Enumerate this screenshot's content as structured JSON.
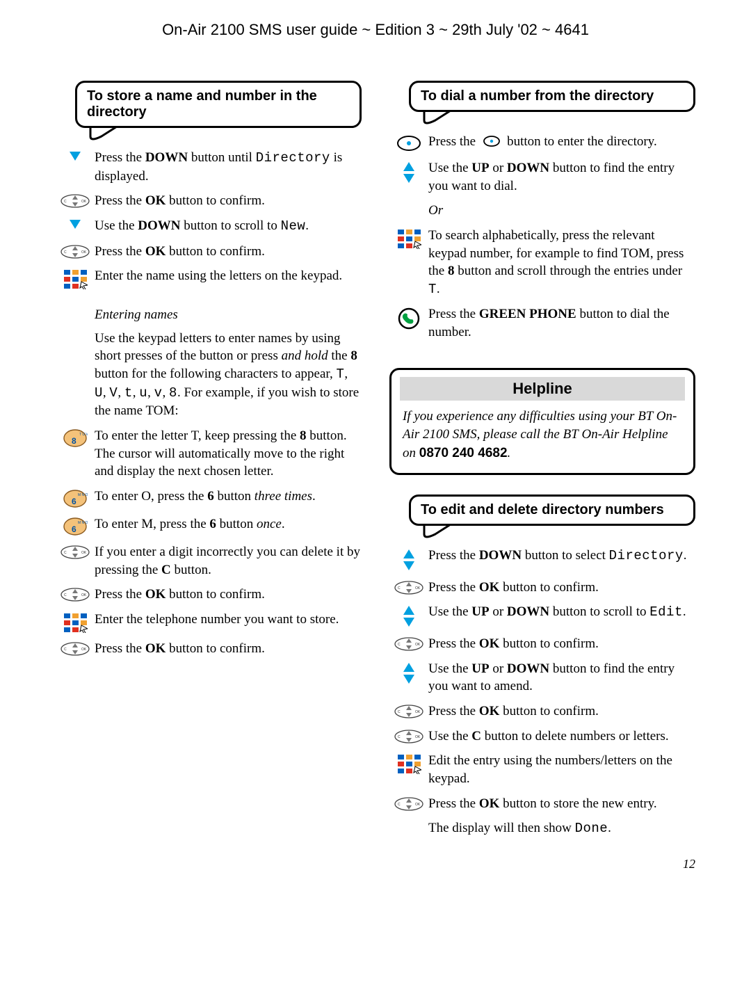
{
  "header": "On-Air 2100 SMS user guide ~ Edition 3 ~ 29th July '02 ~ 4641",
  "pageNumber": "12",
  "colors": {
    "accentBlue": "#00a0e0",
    "keyFill": "#f4c27a",
    "keyStroke": "#8a5a20",
    "keyText": "#0050a0",
    "keypadRed": "#e03020",
    "keypadBlue": "#0060c0",
    "keypadOrange": "#f0a030",
    "phoneGreen": "#00a040",
    "helpBarBg": "#d9d9d9"
  },
  "left": {
    "title": "To store a name and number in the directory",
    "steps": [
      {
        "icon": "down",
        "html": "Press the <span class='bold'>DOWN</span> button until <span class='mono'>Directory</span> is displayed."
      },
      {
        "icon": "ok",
        "html": "Press the <span class='bold'>OK</span> button to confirm."
      },
      {
        "icon": "down",
        "html": "Use the <span class='bold'>DOWN</span> button to scroll to <span class='mono'>New</span>."
      },
      {
        "icon": "ok",
        "html": "Press the <span class='bold'>OK</span> button to confirm."
      },
      {
        "icon": "keypad",
        "html": "Enter the name using the letters on the keypad."
      }
    ],
    "subhead": "Entering names",
    "para": "Use the keypad letters to enter names by using short presses of the button or press <span class='italic'>and hold</span> the <span class='bold'>8</span> button for the following characters to appear, <span class='mono'>T</span>, <span class='mono'>U</span>, <span class='mono'>V</span>, <span class='mono'>t</span>, <span class='mono'>u</span>, <span class='mono'>v</span>, <span class='mono'>8</span>. For example, if you wish to store the name TOM:",
    "steps2": [
      {
        "icon": "key8",
        "html": "To enter the letter T, keep pressing the <span class='bold'>8</span> button. The cursor will automatically move to the right and display the next chosen letter."
      },
      {
        "icon": "key6",
        "html": "To enter O, press the <span class='bold'>6</span> button <span class='italic'>three times</span>."
      },
      {
        "icon": "key6",
        "html": "To enter M, press the <span class='bold'>6</span> button <span class='italic'>once</span>."
      },
      {
        "icon": "ok",
        "html": "If you enter a digit incorrectly you can delete it by pressing the <span class='bold'>C</span> button."
      },
      {
        "icon": "ok",
        "html": "Press the <span class='bold'>OK</span> button to confirm."
      },
      {
        "icon": "keypad",
        "html": "Enter the telephone number you want to store."
      },
      {
        "icon": "ok",
        "html": "Press the <span class='bold'>OK</span> button to confirm."
      }
    ]
  },
  "rightA": {
    "title": "To dial a number from the directory",
    "steps": [
      {
        "icon": "dot",
        "html": "Press the &nbsp;<svg width='26' height='18' style='vertical-align:-3px'><ellipse cx='13' cy='9' rx='11' ry='7' fill='none' stroke='#000' stroke-width='1.8'/><circle cx='13' cy='9' r='2.2' fill='#00a0e0'/></svg>&nbsp; button to enter the directory."
      },
      {
        "icon": "updown",
        "html": "Use the <span class='bold'>UP</span> or <span class='bold'>DOWN</span> button to find the entry you want to dial."
      },
      {
        "icon": "none",
        "html": "<span class='italic'>Or</span>"
      },
      {
        "icon": "keypad",
        "html": "To search alphabetically, press the relevant keypad number, for example to find TOM, press the <span class='bold'>8</span> button and scroll through the entries under <span class='mono'>T</span>."
      },
      {
        "icon": "phone",
        "html": "Press the <span class='bold'>GREEN PHONE</span> button to dial the number."
      }
    ]
  },
  "help": {
    "title": "Helpline",
    "body": "If you experience any difficulties using your BT On-Air 2100 SMS, please call the BT On-Air Helpline on ",
    "number": "0870 240 4682"
  },
  "rightB": {
    "title": "To edit and delete directory numbers",
    "steps": [
      {
        "icon": "updown",
        "html": "Press the <span class='bold'>DOWN</span> button to select <span class='mono'>Directory</span>."
      },
      {
        "icon": "ok",
        "html": "Press the <span class='bold'>OK</span> button to confirm."
      },
      {
        "icon": "updown",
        "html": "Use the <span class='bold'>UP</span> or <span class='bold'>DOWN</span> button to scroll to <span class='mono'>Edit</span>."
      },
      {
        "icon": "ok",
        "html": "Press the <span class='bold'>OK</span> button to confirm."
      },
      {
        "icon": "updown",
        "html": "Use the <span class='bold'>UP</span> or <span class='bold'>DOWN</span> button to find the entry you want to amend."
      },
      {
        "icon": "ok",
        "html": "Press the <span class='bold'>OK</span> button to confirm."
      },
      {
        "icon": "ok",
        "html": "Use the <span class='bold'>C</span> button to delete numbers or letters."
      },
      {
        "icon": "keypad",
        "html": "Edit the entry using the numbers/letters on the keypad."
      },
      {
        "icon": "ok",
        "html": "Press the <span class='bold'>OK</span> button to store the new entry."
      },
      {
        "icon": "none",
        "html": "The display will then show <span class='mono'>Done</span>."
      }
    ]
  }
}
